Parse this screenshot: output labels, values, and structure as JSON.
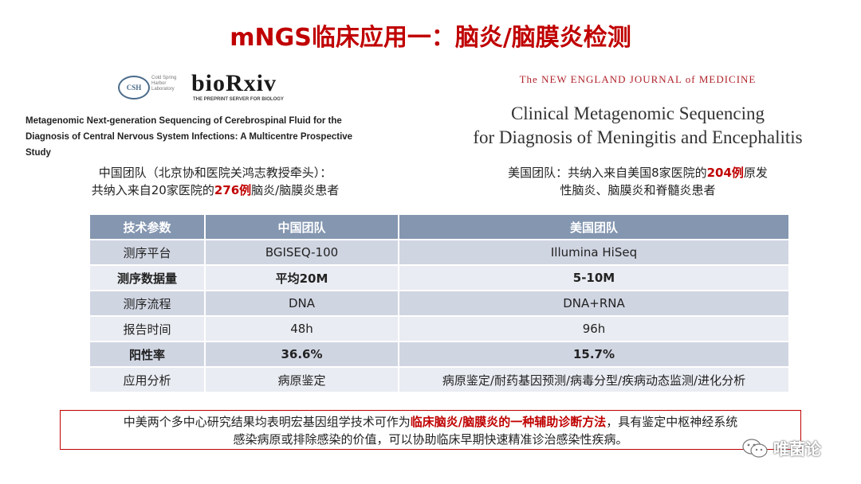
{
  "title": "mNGS临床应用一：脑炎/脑膜炎检测",
  "left": {
    "csh_logo": "CSH",
    "csh_text": "Cold Spring Harbor Laboratory",
    "biorxiv_logo": "bioRxiv",
    "biorxiv_tagline": "THE PREPRINT SERVER FOR BIOLOGY",
    "paper_title_line1": "Metagenomic Next-generation Sequencing of Cerebrospinal Fluid for the",
    "paper_title_line2": "Diagnosis of Central Nervous System Infections: A Multicentre Prospective",
    "paper_title_line3": "Study",
    "team_line1": "中国团队（北京协和医院关鸿志教授牵头）：",
    "team_line2_pre": "共纳入来自20家医院的",
    "team_line2_hl": "276例",
    "team_line2_post": "脑炎/脑膜炎患者"
  },
  "right": {
    "journal": "The NEW ENGLAND JOURNAL of MEDICINE",
    "paper_title_line1": "Clinical Metagenomic Sequencing",
    "paper_title_line2": "for Diagnosis of Meningitis and Encephalitis",
    "team_line1_pre": "美国团队：共纳入来自美国8家医院的",
    "team_line1_hl": "204例",
    "team_line1_post": "原发",
    "team_line2": "性脑炎、脑膜炎和脊髓炎患者"
  },
  "table": {
    "headers": [
      "技术参数",
      "中国团队",
      "美国团队"
    ],
    "rows": [
      [
        "测序平台",
        "BGISEQ-100",
        "Illumina HiSeq"
      ],
      [
        "测序数据量",
        "平均20M",
        "5-10M"
      ],
      [
        "测序流程",
        "DNA",
        "DNA+RNA"
      ],
      [
        "报告时间",
        "48h",
        "96h"
      ],
      [
        "阳性率",
        "36.6%",
        "15.7%"
      ],
      [
        "应用分析",
        "病原鉴定",
        "病原鉴定/耐药基因预测/病毒分型/疾病动态监测/进化分析"
      ]
    ]
  },
  "conclusion": {
    "line1_pre": "中美两个多中心研究结果均表明宏基因组学技术可作为",
    "line1_hl": "临床脑炎/脑膜炎的一种辅助诊断方法",
    "line1_post": "，具有鉴定中枢神经系统",
    "line2": "感染病原或排除感染的价值，可以协助临床早期快速精准诊治感染性疾病。"
  },
  "watermark": {
    "text": "唯菌论",
    "icon": "wechat-icon"
  },
  "colors": {
    "title_red": "#c00000",
    "table_header": "#8496b0",
    "row_odd": "#d0d5e2",
    "row_even": "#e9ecf2",
    "journal_red": "#b0222b"
  }
}
